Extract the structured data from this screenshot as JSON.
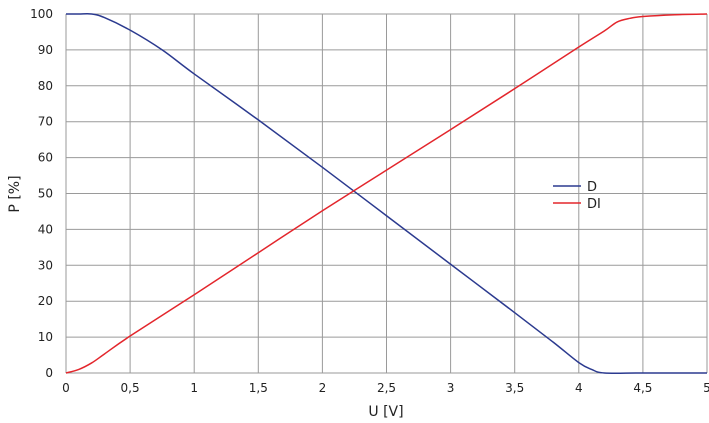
{
  "chart_data": {
    "type": "line",
    "xlabel": "U [V]",
    "ylabel": "P [%]",
    "xlim": [
      0,
      5
    ],
    "ylim": [
      0,
      100
    ],
    "x_ticks": [
      "0",
      "0,5",
      "1",
      "1,5",
      "2",
      "2,5",
      "3",
      "3,5",
      "4",
      "4,5",
      "5"
    ],
    "y_ticks": [
      "0",
      "10",
      "20",
      "30",
      "40",
      "50",
      "60",
      "70",
      "80",
      "90",
      "100"
    ],
    "grid": true,
    "legend_position": "right",
    "series": [
      {
        "name": "D",
        "color": "#2b3a8f",
        "points": [
          [
            0,
            100
          ],
          [
            0.1,
            100
          ],
          [
            0.2,
            100
          ],
          [
            0.3,
            99
          ],
          [
            0.5,
            95.5
          ],
          [
            0.75,
            90
          ],
          [
            1,
            83.3
          ],
          [
            1.5,
            70.5
          ],
          [
            2,
            57.3
          ],
          [
            2.5,
            43.8
          ],
          [
            3,
            30.3
          ],
          [
            3.5,
            16.8
          ],
          [
            3.8,
            8.6
          ],
          [
            4,
            2.9
          ],
          [
            4.1,
            1
          ],
          [
            4.2,
            0
          ],
          [
            4.5,
            0
          ],
          [
            5,
            0
          ]
        ]
      },
      {
        "name": "DI",
        "color": "#e3262c",
        "points": [
          [
            0,
            0
          ],
          [
            0.1,
            1
          ],
          [
            0.2,
            2.8
          ],
          [
            0.3,
            5.3
          ],
          [
            0.5,
            10.3
          ],
          [
            1,
            21.8
          ],
          [
            1.5,
            33.5
          ],
          [
            2,
            45.2
          ],
          [
            2.5,
            56.5
          ],
          [
            3,
            67.8
          ],
          [
            3.5,
            79.2
          ],
          [
            4,
            90.8
          ],
          [
            4.2,
            95.3
          ],
          [
            4.3,
            97.8
          ],
          [
            4.4,
            98.8
          ],
          [
            4.5,
            99.3
          ],
          [
            4.75,
            99.8
          ],
          [
            5,
            100
          ]
        ]
      }
    ]
  }
}
